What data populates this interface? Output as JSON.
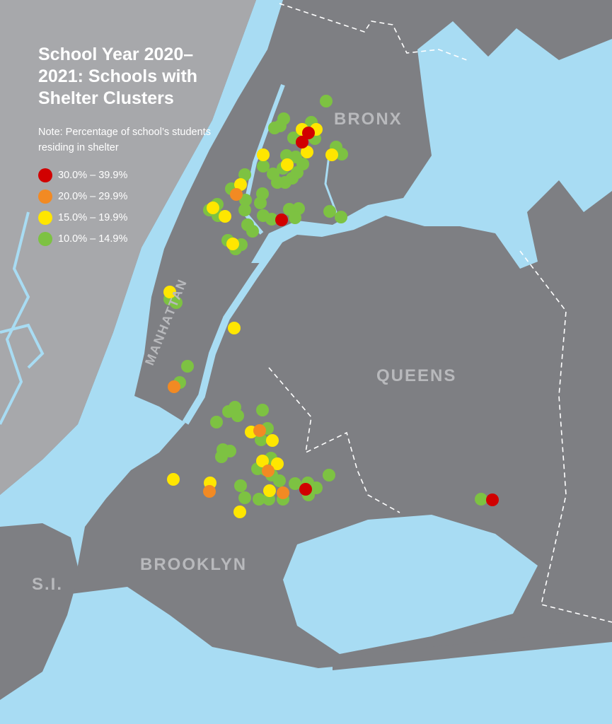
{
  "title": "School Year 2020–2021: Schools with Shelter Clusters",
  "note": "Note: Percentage of school’s students residing in shelter",
  "legend": [
    {
      "label": "30.0% – 39.9%",
      "color": "#d10000"
    },
    {
      "label": "20.0% – 29.9%",
      "color": "#f28a23"
    },
    {
      "label": "15.0% – 19.9%",
      "color": "#ffe600"
    },
    {
      "label": "10.0% – 14.9%",
      "color": "#7dc242"
    }
  ],
  "boroughs": {
    "bronx": "BRONX",
    "manhattan": "MANHATTAN",
    "queens": "QUEENS",
    "brooklyn": "BROOKLYN",
    "staten_island": "S.I."
  },
  "colors": {
    "water": "#a8dcf3",
    "land": "#7e7f83",
    "nj_land": "#a7a8ab",
    "label": "#b8b9bc"
  }
}
